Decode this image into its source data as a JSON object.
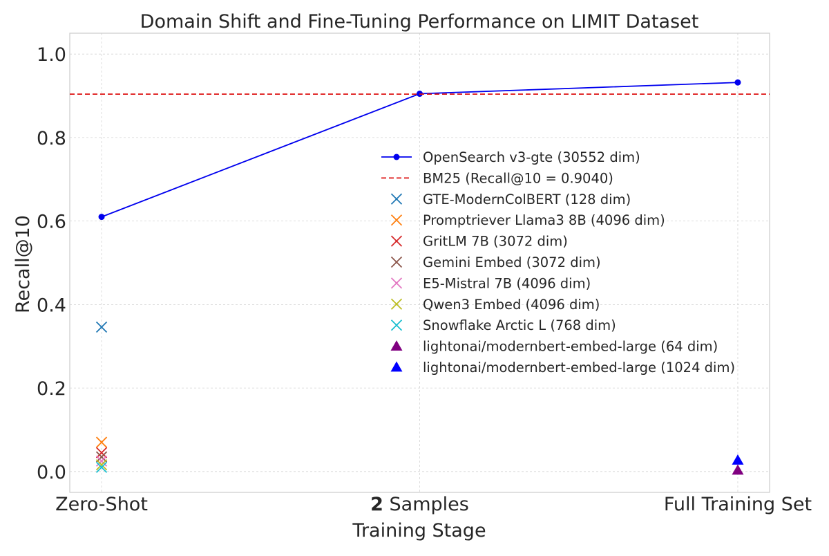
{
  "chart_data": {
    "type": "line",
    "title": "Domain Shift and Fine-Tuning Performance on LIMIT Dataset",
    "xlabel": "Training Stage",
    "ylabel": "Recall@10",
    "categories": [
      {
        "bold": "",
        "text": "Zero-Shot"
      },
      {
        "bold": "2",
        "text": " Samples"
      },
      {
        "bold": "",
        "text": "Full Training Set"
      }
    ],
    "xlim": [
      -0.1,
      2.1
    ],
    "ylim": [
      -0.05,
      1.05
    ],
    "yticks": [
      {
        "value": 0.0,
        "label": "0.0"
      },
      {
        "value": 0.2,
        "label": "0.2"
      },
      {
        "value": 0.4,
        "label": "0.4"
      },
      {
        "value": 0.6,
        "label": "0.6"
      },
      {
        "value": 0.8,
        "label": "0.8"
      },
      {
        "value": 1.0,
        "label": "1.0"
      }
    ],
    "grid": true,
    "legend_position": "center-right",
    "series": [
      {
        "name": "OpenSearch v3-gte (30552 dim)",
        "kind": "line",
        "color": "#0000ee",
        "x": [
          0,
          1,
          2
        ],
        "y": [
          0.61,
          0.905,
          0.932
        ]
      },
      {
        "name": "BM25 (Recall@10 = 0.9040)",
        "kind": "hline",
        "color": "#dd1111",
        "y": 0.904
      },
      {
        "name": "GTE-ModernColBERT (128 dim)",
        "kind": "x",
        "color": "#1f77b4",
        "x": [
          0
        ],
        "y": [
          0.346
        ]
      },
      {
        "name": "Promptriever Llama3 8B (4096 dim)",
        "kind": "x",
        "color": "#ff7f0e",
        "x": [
          0
        ],
        "y": [
          0.07
        ]
      },
      {
        "name": "GritLM 7B (3072 dim)",
        "kind": "x",
        "color": "#d62728",
        "x": [
          0
        ],
        "y": [
          0.045
        ]
      },
      {
        "name": "Gemini Embed (3072 dim)",
        "kind": "x",
        "color": "#8c564b",
        "x": [
          0
        ],
        "y": [
          0.035
        ]
      },
      {
        "name": "E5-Mistral 7B (4096 dim)",
        "kind": "x",
        "color": "#e377c2",
        "x": [
          0
        ],
        "y": [
          0.025
        ]
      },
      {
        "name": "Qwen3 Embed (4096 dim)",
        "kind": "x",
        "color": "#bcbd22",
        "x": [
          0
        ],
        "y": [
          0.016
        ]
      },
      {
        "name": "Snowflake Arctic L (768 dim)",
        "kind": "x",
        "color": "#17becf",
        "x": [
          0
        ],
        "y": [
          0.01
        ]
      },
      {
        "name": "lightonai/modernbert-embed-large (64 dim)",
        "kind": "triangle",
        "color": "#800080",
        "x": [
          2
        ],
        "y": [
          0.003
        ]
      },
      {
        "name": "lightonai/modernbert-embed-large (1024 dim)",
        "kind": "triangle",
        "color": "#0000ff",
        "x": [
          2
        ],
        "y": [
          0.027
        ]
      }
    ]
  }
}
